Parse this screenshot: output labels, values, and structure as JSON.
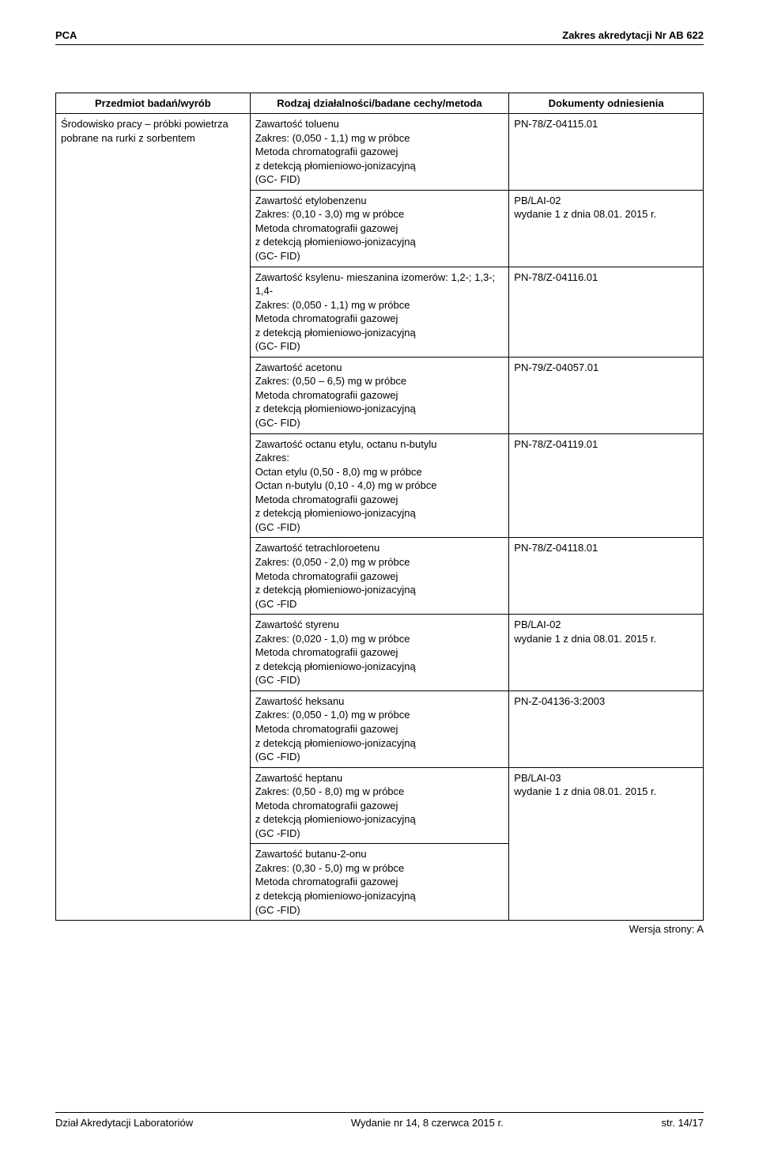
{
  "header": {
    "left": "PCA",
    "right": "Zakres akredytacji Nr AB 622"
  },
  "table": {
    "headers": {
      "col1": "Przedmiot badań/wyrób",
      "col2": "Rodzaj działalności/badane cechy/metoda",
      "col3": "Dokumenty odniesienia"
    },
    "col1_text": "Środowisko pracy – próbki powietrza pobrane na rurki z sorbentem",
    "rows": [
      {
        "method": "Zawartość toluenu\nZakres: (0,050 - 1,1) mg w próbce\nMetoda chromatografii gazowej\nz detekcją płomieniowo-jonizacyjną\n(GC- FID)",
        "doc": "PN-78/Z-04115.01"
      },
      {
        "method": "Zawartość etylobenzenu\nZakres: (0,10 - 3,0) mg w próbce\nMetoda chromatografii gazowej\nz detekcją płomieniowo-jonizacyjną\n(GC- FID)",
        "doc": "PB/LAI-02\nwydanie 1 z dnia 08.01. 2015 r."
      },
      {
        "method": "Zawartość ksylenu- mieszanina izomerów: 1,2-; 1,3-; 1,4-\nZakres: (0,050 - 1,1) mg w próbce\nMetoda chromatografii gazowej\nz detekcją płomieniowo-jonizacyjną\n(GC- FID)",
        "doc": "PN-78/Z-04116.01"
      },
      {
        "method": "Zawartość acetonu\nZakres: (0,50 – 6,5) mg w próbce\nMetoda chromatografii gazowej\nz detekcją płomieniowo-jonizacyjną\n(GC- FID)",
        "doc": "PN-79/Z-04057.01"
      },
      {
        "method": "Zawartość octanu etylu, octanu n-butylu\nZakres:\nOctan etylu (0,50 - 8,0) mg w próbce\nOctan n-butylu (0,10 - 4,0) mg w próbce\n Metoda chromatografii gazowej\nz detekcją płomieniowo-jonizacyjną\n(GC -FID)",
        "doc": "PN-78/Z-04119.01"
      },
      {
        "method": "Zawartość tetrachloroetenu\nZakres: (0,050 - 2,0) mg w próbce\n Metoda chromatografii gazowej\nz detekcją płomieniowo-jonizacyjną\n(GC -FID",
        "doc": "PN-78/Z-04118.01"
      },
      {
        "method": "Zawartość styrenu\nZakres: (0,020 - 1,0) mg w próbce\n Metoda chromatografii gazowej\nz detekcją płomieniowo-jonizacyjną\n(GC -FID)",
        "doc": "PB/LAI-02\nwydanie 1 z dnia 08.01. 2015 r."
      },
      {
        "method": "Zawartość heksanu\nZakres: (0,050 - 1,0) mg w próbce\nMetoda chromatografii gazowej\nz detekcją płomieniowo-jonizacyjną\n(GC -FID)",
        "doc": "PN-Z-04136-3:2003"
      },
      {
        "method": "Zawartość heptanu\nZakres: (0,50 - 8,0) mg w próbce\nMetoda chromatografii gazowej\nz detekcją płomieniowo-jonizacyjną\n(GC -FID)",
        "doc": "PB/LAI-03\nwydanie 1 z dnia 08.01. 2015 r."
      },
      {
        "method": "Zawartość butanu-2-onu\nZakres: (0,30 - 5,0) mg w próbce\nMetoda chromatografii gazowej\nz detekcją płomieniowo-jonizacyjną\n(GC -FID)",
        "doc": ""
      }
    ],
    "wersja": "Wersja strony: A"
  },
  "footer": {
    "left": "Dział Akredytacji Laboratoriów",
    "center": "Wydanie nr 14, 8 czerwca 2015 r.",
    "right": "str. 14/17"
  }
}
